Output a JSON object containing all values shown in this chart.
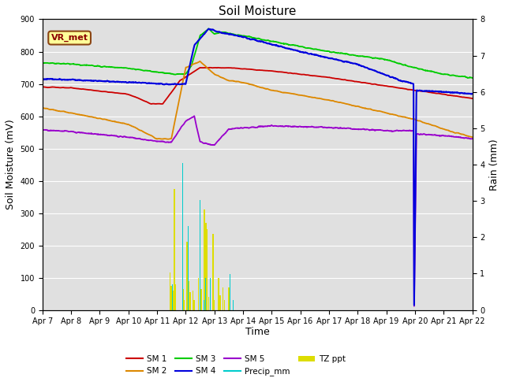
{
  "title": "Soil Moisture",
  "xlabel": "Time",
  "ylabel_left": "Soil Moisture (mV)",
  "ylabel_right": "Rain (mm)",
  "ylim_left": [
    0,
    900
  ],
  "ylim_right": [
    0,
    8.0
  ],
  "yticks_left": [
    0,
    100,
    200,
    300,
    400,
    500,
    600,
    700,
    800,
    900
  ],
  "yticks_right": [
    0.0,
    1.0,
    2.0,
    3.0,
    4.0,
    5.0,
    6.0,
    7.0,
    8.0
  ],
  "x_tick_labels": [
    "Apr 7",
    "Apr 8",
    "Apr 9",
    "Apr 10",
    "Apr 11",
    "Apr 12",
    "Apr 13",
    "Apr 14",
    "Apr 15",
    "Apr 16",
    "Apr 17",
    "Apr 18",
    "Apr 19",
    "Apr 20",
    "Apr 21",
    "Apr 22"
  ],
  "annotation_text": "VR_met",
  "annotation_box_color": "#ffff99",
  "annotation_box_edgecolor": "#8B4513",
  "colors": {
    "SM1": "#cc0000",
    "SM2": "#dd8800",
    "SM3": "#00cc00",
    "SM4": "#0000dd",
    "SM5": "#9900cc",
    "Precip_mm": "#00cccc",
    "TZ_ppt": "#dddd00"
  },
  "bg_color": "#e0e0e0",
  "grid_color": "#ffffff"
}
